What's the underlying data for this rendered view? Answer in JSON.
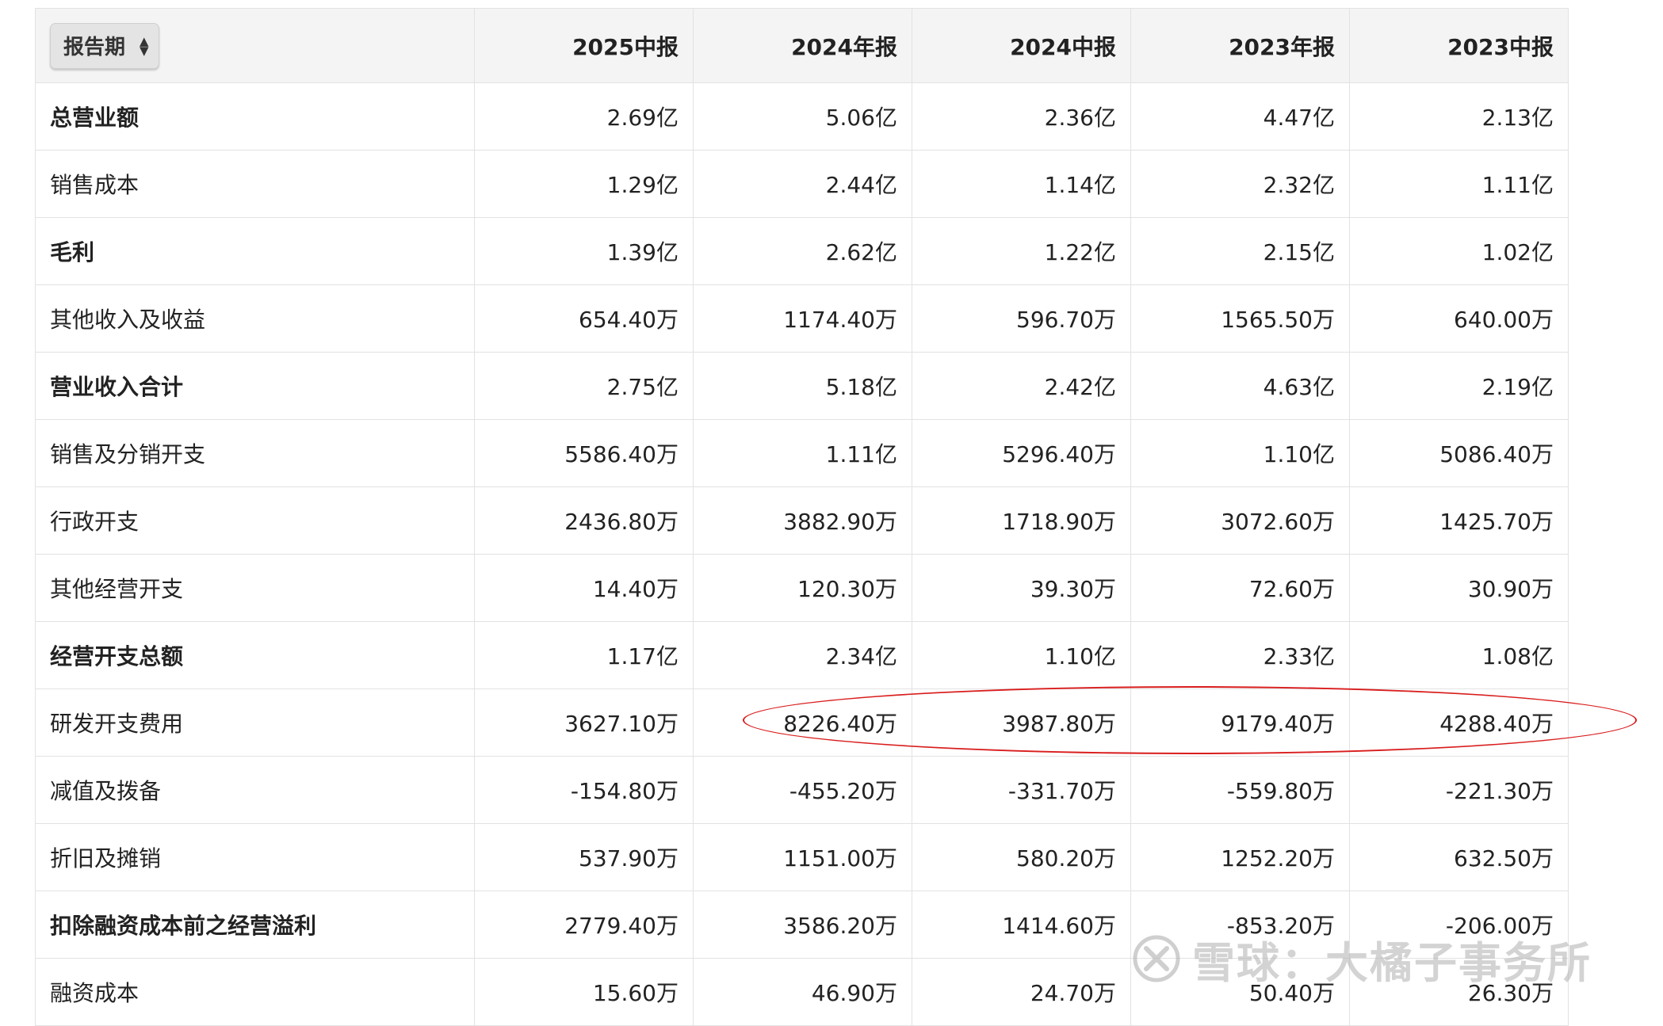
{
  "table": {
    "period_selector": "报告期",
    "columns": [
      "2025中报",
      "2024年报",
      "2024中报",
      "2023年报",
      "2023中报"
    ],
    "rows": [
      {
        "label": "总营业额",
        "bold": true,
        "values": [
          "2.69亿",
          "5.06亿",
          "2.36亿",
          "4.47亿",
          "2.13亿"
        ]
      },
      {
        "label": "销售成本",
        "bold": false,
        "values": [
          "1.29亿",
          "2.44亿",
          "1.14亿",
          "2.32亿",
          "1.11亿"
        ]
      },
      {
        "label": "毛利",
        "bold": true,
        "values": [
          "1.39亿",
          "2.62亿",
          "1.22亿",
          "2.15亿",
          "1.02亿"
        ]
      },
      {
        "label": "其他收入及收益",
        "bold": false,
        "values": [
          "654.40万",
          "1174.40万",
          "596.70万",
          "1565.50万",
          "640.00万"
        ]
      },
      {
        "label": "营业收入合计",
        "bold": true,
        "values": [
          "2.75亿",
          "5.18亿",
          "2.42亿",
          "4.63亿",
          "2.19亿"
        ]
      },
      {
        "label": "销售及分销开支",
        "bold": false,
        "values": [
          "5586.40万",
          "1.11亿",
          "5296.40万",
          "1.10亿",
          "5086.40万"
        ]
      },
      {
        "label": "行政开支",
        "bold": false,
        "values": [
          "2436.80万",
          "3882.90万",
          "1718.90万",
          "3072.60万",
          "1425.70万"
        ]
      },
      {
        "label": "其他经营开支",
        "bold": false,
        "values": [
          "14.40万",
          "120.30万",
          "39.30万",
          "72.60万",
          "30.90万"
        ]
      },
      {
        "label": "经营开支总额",
        "bold": true,
        "values": [
          "1.17亿",
          "2.34亿",
          "1.10亿",
          "2.33亿",
          "1.08亿"
        ]
      },
      {
        "label": "研发开支费用",
        "bold": false,
        "values": [
          "3627.10万",
          "8226.40万",
          "3987.80万",
          "9179.40万",
          "4288.40万"
        ]
      },
      {
        "label": "减值及拨备",
        "bold": false,
        "values": [
          "-154.80万",
          "-455.20万",
          "-331.70万",
          "-559.80万",
          "-221.30万"
        ]
      },
      {
        "label": "折旧及摊销",
        "bold": false,
        "values": [
          "537.90万",
          "1151.00万",
          "580.20万",
          "1252.20万",
          "632.50万"
        ]
      },
      {
        "label": "扣除融资成本前之经营溢利",
        "bold": true,
        "values": [
          "2779.40万",
          "3586.20万",
          "1414.60万",
          "-853.20万",
          "-206.00万"
        ]
      },
      {
        "label": "融资成本",
        "bold": false,
        "values": [
          "15.60万",
          "46.90万",
          "24.70万",
          "50.40万",
          "26.30万"
        ]
      }
    ]
  },
  "annotation": {
    "color": "#d91d1d"
  },
  "watermark": {
    "text": "雪球：大橘子事务所"
  }
}
